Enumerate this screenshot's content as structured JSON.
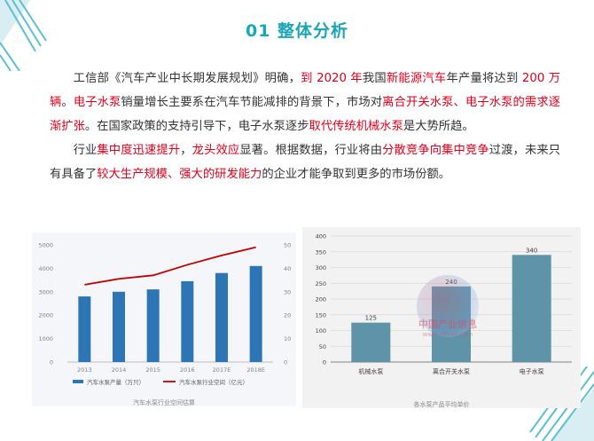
{
  "title": "01 整体分析",
  "paragraphs": [
    [
      {
        "text": "工信部《汽车产业中长期发展规划》明确，",
        "hl": false
      },
      {
        "text": "到 2020 年",
        "hl": true
      },
      {
        "text": "我国",
        "hl": false
      },
      {
        "text": "新能源汽车",
        "hl": true
      },
      {
        "text": "年产量将达到 ",
        "hl": false
      },
      {
        "text": "200 万辆",
        "hl": true
      },
      {
        "text": "。",
        "hl": false
      },
      {
        "text": "电子水泵",
        "hl": true
      },
      {
        "text": "销量增长主要系在汽车节能减排的背景下，市场对",
        "hl": false
      },
      {
        "text": "离合开关水泵、电子水泵的需求逐渐扩张",
        "hl": true
      },
      {
        "text": "。在国家政策的支持引导下，电子水泵逐步",
        "hl": false
      },
      {
        "text": "取代传统机械水泵",
        "hl": true
      },
      {
        "text": "是大势所趋。",
        "hl": false
      }
    ],
    [
      {
        "text": "行业",
        "hl": false
      },
      {
        "text": "集中度迅速提升",
        "hl": true
      },
      {
        "text": "，",
        "hl": false
      },
      {
        "text": "龙头效应",
        "hl": true
      },
      {
        "text": "显著。根据数据，行业将由",
        "hl": false
      },
      {
        "text": "分散竞争向集中竞争",
        "hl": true
      },
      {
        "text": "过渡，未来只有具备了",
        "hl": false
      },
      {
        "text": "较大生产规模、强大的研发能力",
        "hl": true
      },
      {
        "text": "的企业才能争取到更多的市场份额。",
        "hl": false
      }
    ]
  ],
  "chart1_caption": "汽车水泵行业空间估算",
  "chart2_caption": "各水泵产品平均单价",
  "watermark": {
    "name": "中国产业信息",
    "url": "www.chyxx.com"
  },
  "colors": {
    "accent": "#1aa6b7",
    "highlight": "#d9001b",
    "bar1": "#2e75b6",
    "line1": "#c00000",
    "bar2": "#5e93a8"
  },
  "chart_data": [
    {
      "type": "bar",
      "categories": [
        "2013",
        "2014",
        "2015",
        "2016",
        "2017E",
        "2018E"
      ],
      "series": [
        {
          "name": "汽车水泵产量（万只）",
          "type": "bar",
          "axis": "left",
          "values": [
            2800,
            3000,
            3100,
            3450,
            3800,
            4100
          ]
        },
        {
          "name": "汽车水泵行业空间（亿元）",
          "type": "line",
          "axis": "right",
          "values": [
            33,
            35.5,
            37,
            41.5,
            45.5,
            49
          ]
        }
      ],
      "ylim": [
        0,
        5000
      ],
      "yticks": [
        0,
        1000,
        2000,
        3000,
        4000,
        5000
      ],
      "y2lim": [
        0,
        50
      ],
      "y2ticks": [
        0,
        10,
        20,
        30,
        40,
        50
      ],
      "legend": "bottom",
      "grid": false
    },
    {
      "type": "bar",
      "categories": [
        "机械水泵",
        "离合开关水泵",
        "电子水泵"
      ],
      "values": [
        125,
        240,
        340
      ],
      "data_labels": [
        "125",
        "240",
        "340"
      ],
      "ylim": [
        0,
        400
      ],
      "yticks": [
        0,
        50,
        100,
        150,
        200,
        250,
        300,
        350,
        400
      ],
      "grid": true
    }
  ]
}
